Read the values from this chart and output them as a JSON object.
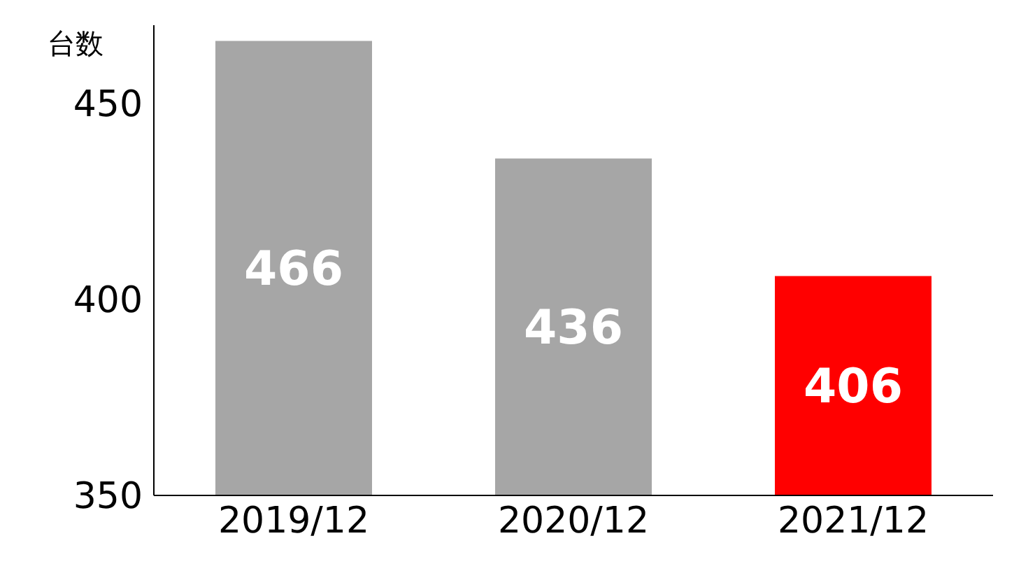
{
  "chart_data": {
    "type": "bar",
    "ylabel": "台数",
    "categories": [
      "2019/12",
      "2020/12",
      "2021/12"
    ],
    "values": [
      466,
      436,
      406
    ],
    "colors": [
      "#a6a6a6",
      "#a6a6a6",
      "#ff0000"
    ],
    "ylim": [
      350,
      470
    ],
    "yticks": [
      350,
      400,
      450
    ],
    "data_labels": true
  }
}
